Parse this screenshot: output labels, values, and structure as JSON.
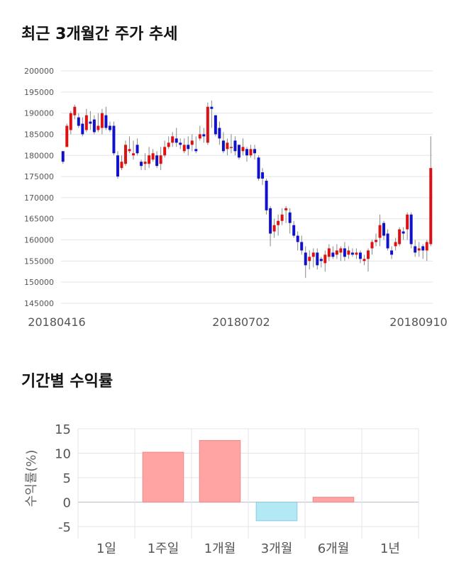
{
  "titles": {
    "price_trend": "최근 3개월간 주가 추세",
    "returns": "기간별 수익률"
  },
  "chart_data": [
    {
      "type": "candlestick",
      "ylim": [
        145000,
        200000
      ],
      "y_ticks": [
        "200000",
        "195000",
        "190000",
        "185000",
        "180000",
        "175000",
        "170000",
        "165000",
        "160000",
        "155000",
        "150000",
        "145000"
      ],
      "x_ticks": [
        "20180416",
        "20180702",
        "20180910"
      ],
      "colors": {
        "up": "#dd1111",
        "down": "#1111cc",
        "wick": "#888888"
      },
      "candles": [
        [
          181000,
          178500,
          181000,
          178000
        ],
        [
          182000,
          187000,
          187500,
          182000
        ],
        [
          186000,
          190000,
          190500,
          185000
        ],
        [
          189500,
          191500,
          192000,
          188500
        ],
        [
          189000,
          187000,
          190000,
          186500
        ],
        [
          187500,
          185000,
          189000,
          184500
        ],
        [
          186000,
          189500,
          191000,
          185500
        ],
        [
          188000,
          187500,
          190500,
          186000
        ],
        [
          188500,
          185500,
          189500,
          185000
        ],
        [
          186000,
          187000,
          190000,
          185500
        ],
        [
          186500,
          190000,
          191000,
          185000
        ],
        [
          189500,
          186500,
          191500,
          186000
        ],
        [
          187000,
          186000,
          188000,
          185500
        ],
        [
          187000,
          180500,
          188000,
          180000
        ],
        [
          180000,
          175000,
          181000,
          174500
        ],
        [
          177000,
          178500,
          180000,
          176500
        ],
        [
          178000,
          182500,
          183500,
          177500
        ],
        [
          181000,
          181500,
          184500,
          180500
        ],
        [
          180000,
          180500,
          183500,
          179000
        ],
        [
          182500,
          180500,
          184000,
          180000
        ],
        [
          178500,
          177500,
          179000,
          176500
        ],
        [
          178000,
          178500,
          180500,
          176500
        ],
        [
          178000,
          180000,
          182000,
          177000
        ],
        [
          179000,
          180500,
          181500,
          178500
        ],
        [
          180000,
          177500,
          181000,
          177000
        ],
        [
          178000,
          180000,
          182000,
          176500
        ],
        [
          180000,
          182000,
          183500,
          179500
        ],
        [
          182000,
          183000,
          184500,
          181500
        ],
        [
          183000,
          184500,
          185500,
          182000
        ],
        [
          184000,
          183000,
          186500,
          182000
        ],
        [
          183000,
          182500,
          184000,
          181500
        ],
        [
          181000,
          182500,
          184000,
          180500
        ],
        [
          182500,
          181500,
          184500,
          180000
        ],
        [
          182500,
          183500,
          185000,
          181000
        ],
        [
          181500,
          181000,
          184500,
          180500
        ],
        [
          184000,
          185000,
          187000,
          183500
        ],
        [
          185000,
          184500,
          186500,
          183000
        ],
        [
          183000,
          191500,
          192500,
          182500
        ],
        [
          191500,
          191000,
          193000,
          186500
        ],
        [
          189500,
          185000,
          189500,
          184500
        ],
        [
          186500,
          184000,
          188000,
          182500
        ],
        [
          183500,
          181000,
          185500,
          180500
        ],
        [
          181500,
          183000,
          184000,
          180000
        ],
        [
          182000,
          182000,
          185000,
          180500
        ],
        [
          183500,
          181000,
          184500,
          180000
        ],
        [
          182500,
          179500,
          182500,
          179000
        ],
        [
          181000,
          182000,
          184000,
          180000
        ],
        [
          181500,
          180000,
          182000,
          178500
        ],
        [
          180000,
          181500,
          182500,
          179500
        ],
        [
          181500,
          180500,
          182500,
          179000
        ],
        [
          179500,
          174500,
          180000,
          174000
        ],
        [
          176000,
          174500,
          177000,
          173000
        ],
        [
          174000,
          167000,
          174500,
          166000
        ],
        [
          167500,
          161500,
          168000,
          158500
        ],
        [
          162000,
          163500,
          165000,
          160500
        ],
        [
          163500,
          164500,
          166000,
          161000
        ],
        [
          164500,
          166000,
          167500,
          163500
        ],
        [
          167000,
          167500,
          168000,
          164000
        ],
        [
          166500,
          164000,
          167500,
          161500
        ],
        [
          163500,
          161000,
          164500,
          160500
        ],
        [
          161000,
          159500,
          162000,
          157500
        ],
        [
          159500,
          157500,
          161000,
          156500
        ],
        [
          157000,
          154000,
          158500,
          151000
        ],
        [
          155000,
          156000,
          157500,
          153000
        ],
        [
          156000,
          157000,
          158000,
          153500
        ],
        [
          157000,
          154000,
          158000,
          153000
        ],
        [
          155500,
          155000,
          156000,
          153500
        ],
        [
          154500,
          156500,
          157500,
          152500
        ],
        [
          156000,
          158000,
          159000,
          155000
        ],
        [
          157000,
          156000,
          158500,
          155500
        ],
        [
          156500,
          157500,
          159000,
          155500
        ],
        [
          157000,
          158000,
          158500,
          155000
        ],
        [
          158000,
          156000,
          159500,
          155000
        ],
        [
          156500,
          157500,
          158500,
          155500
        ],
        [
          157000,
          156500,
          158000,
          156000
        ],
        [
          156500,
          157000,
          158000,
          155500
        ],
        [
          157000,
          155500,
          157500,
          154500
        ],
        [
          155000,
          155500,
          156500,
          154000
        ],
        [
          155500,
          157500,
          158000,
          152500
        ],
        [
          158000,
          159500,
          160000,
          156500
        ],
        [
          159500,
          160000,
          161500,
          158500
        ],
        [
          160500,
          163500,
          166000,
          158500
        ],
        [
          164000,
          161000,
          164500,
          160000
        ],
        [
          161500,
          158000,
          162500,
          157500
        ],
        [
          157500,
          156500,
          158500,
          155500
        ],
        [
          158500,
          159500,
          160500,
          157500
        ],
        [
          159000,
          162500,
          163000,
          158500
        ],
        [
          162000,
          161500,
          163000,
          160000
        ],
        [
          162500,
          166000,
          166500,
          160000
        ],
        [
          166000,
          159000,
          166500,
          158000
        ],
        [
          158500,
          157000,
          160000,
          156000
        ],
        [
          157500,
          158000,
          159500,
          156000
        ],
        [
          158500,
          157500,
          159000,
          155500
        ],
        [
          157500,
          159500,
          160000,
          155000
        ],
        [
          159000,
          177000,
          184500,
          158500
        ]
      ]
    },
    {
      "type": "bar",
      "categories": [
        "1일",
        "1주일",
        "1개월",
        "3개월",
        "6개월",
        "1년"
      ],
      "values": [
        0,
        10.2,
        12.6,
        -3.8,
        1.0,
        0
      ],
      "ylabel": "수익률(%)",
      "ylim": [
        -6,
        15
      ],
      "y_ticks": [
        "15",
        "10",
        "5",
        "0",
        "-5"
      ],
      "colors": {
        "positive": "#ffa3a3",
        "positive_edge": "#ee8888",
        "negative": "#b3e9f4",
        "negative_edge": "#88cce0"
      },
      "grid": true
    }
  ]
}
